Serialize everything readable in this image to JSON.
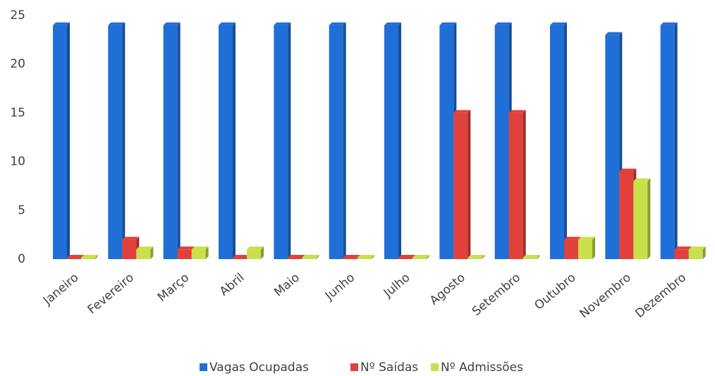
{
  "chart_data": {
    "type": "bar",
    "categories": [
      "Janeiro",
      "Fevereiro",
      "Março",
      "Abril",
      "Maio",
      "Junho",
      "Julho",
      "Agosto",
      "Setembro",
      "Outubro",
      "Novembro",
      "Dezembro"
    ],
    "series": [
      {
        "name": "Vagas Ocupadas",
        "color": "#1f6fd6",
        "values": [
          24,
          24,
          24,
          24,
          24,
          24,
          24,
          24,
          24,
          24,
          23,
          24
        ]
      },
      {
        "name": "Nº Saídas",
        "color": "#e2403a",
        "values": [
          0,
          2,
          1,
          0,
          0,
          0,
          0,
          15,
          15,
          2,
          9,
          1
        ]
      },
      {
        "name": "Nº Admissões",
        "color": "#c8e04a",
        "values": [
          0,
          1,
          1,
          1,
          0,
          0,
          0,
          0,
          0,
          2,
          8,
          1
        ]
      }
    ],
    "ylim": [
      0,
      25
    ],
    "yticks": [
      0,
      5,
      10,
      15,
      20,
      25
    ],
    "grid": false,
    "legend": "bottom"
  }
}
